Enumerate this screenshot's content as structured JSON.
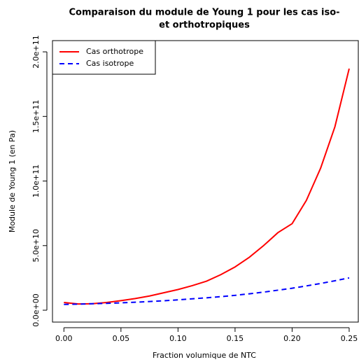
{
  "chart_data": {
    "type": "line",
    "title": "Comparaison du module de Young 1 pour les cas iso-",
    "title_line2": "et orthotropiques",
    "x_label": "Fraction volumique de NTC",
    "y_label": "Module de Young 1 (en Pa)",
    "x": [
      0,
      0.0125,
      0.025,
      0.0375,
      0.05,
      0.0625,
      0.075,
      0.0875,
      0.1,
      0.1125,
      0.125,
      0.1375,
      0.15,
      0.1625,
      0.175,
      0.1875,
      0.2,
      0.2125,
      0.225,
      0.2375,
      0.25
    ],
    "series": [
      {
        "name": "Cas orthotrope",
        "color": "#ff0000",
        "dash": false,
        "values": [
          6000000000.0,
          4800000000.0,
          5000000000.0,
          6000000000.0,
          7400000000.0,
          9000000000.0,
          11000000000.0,
          13500000000.0,
          16000000000.0,
          19000000000.0,
          22500000000.0,
          27500000000.0,
          33500000000.0,
          41000000000.0,
          50000000000.0,
          60000000000.0,
          67000000000.0,
          85000000000.0,
          110000000000.0,
          142000000000.0,
          187000000000.0
        ]
      },
      {
        "name": "Cas isotrope",
        "color": "#0000ff",
        "dash": true,
        "values": [
          4500000000.0,
          4700000000.0,
          5000000000.0,
          5300000000.0,
          5700000000.0,
          6200000000.0,
          6700000000.0,
          7300000000.0,
          8000000000.0,
          8800000000.0,
          9600000000.0,
          10500000000.0,
          11500000000.0,
          12700000000.0,
          14000000000.0,
          15500000000.0,
          17000000000.0,
          18800000000.0,
          20700000000.0,
          22800000000.0,
          25000000000.0
        ]
      }
    ],
    "xlim": [
      -0.01,
      0.258
    ],
    "ylim": [
      -9200000000.0,
      208700000000.0
    ],
    "xticks": [
      {
        "value": 0,
        "label": "0.00"
      },
      {
        "value": 0.05,
        "label": "0.05"
      },
      {
        "value": 0.1,
        "label": "0.10"
      },
      {
        "value": 0.15,
        "label": "0.15"
      },
      {
        "value": 0.2,
        "label": "0.20"
      },
      {
        "value": 0.25,
        "label": "0.25"
      }
    ],
    "yticks": [
      {
        "value": 0,
        "label": "0.0e+00"
      },
      {
        "value": 50000000000.0,
        "label": "5.0e+10"
      },
      {
        "value": 100000000000.0,
        "label": "1.0e+11"
      },
      {
        "value": 150000000000.0,
        "label": "1.5e+11"
      },
      {
        "value": 200000000000.0,
        "label": "2.0e+11"
      }
    ],
    "legend": "top-left"
  }
}
